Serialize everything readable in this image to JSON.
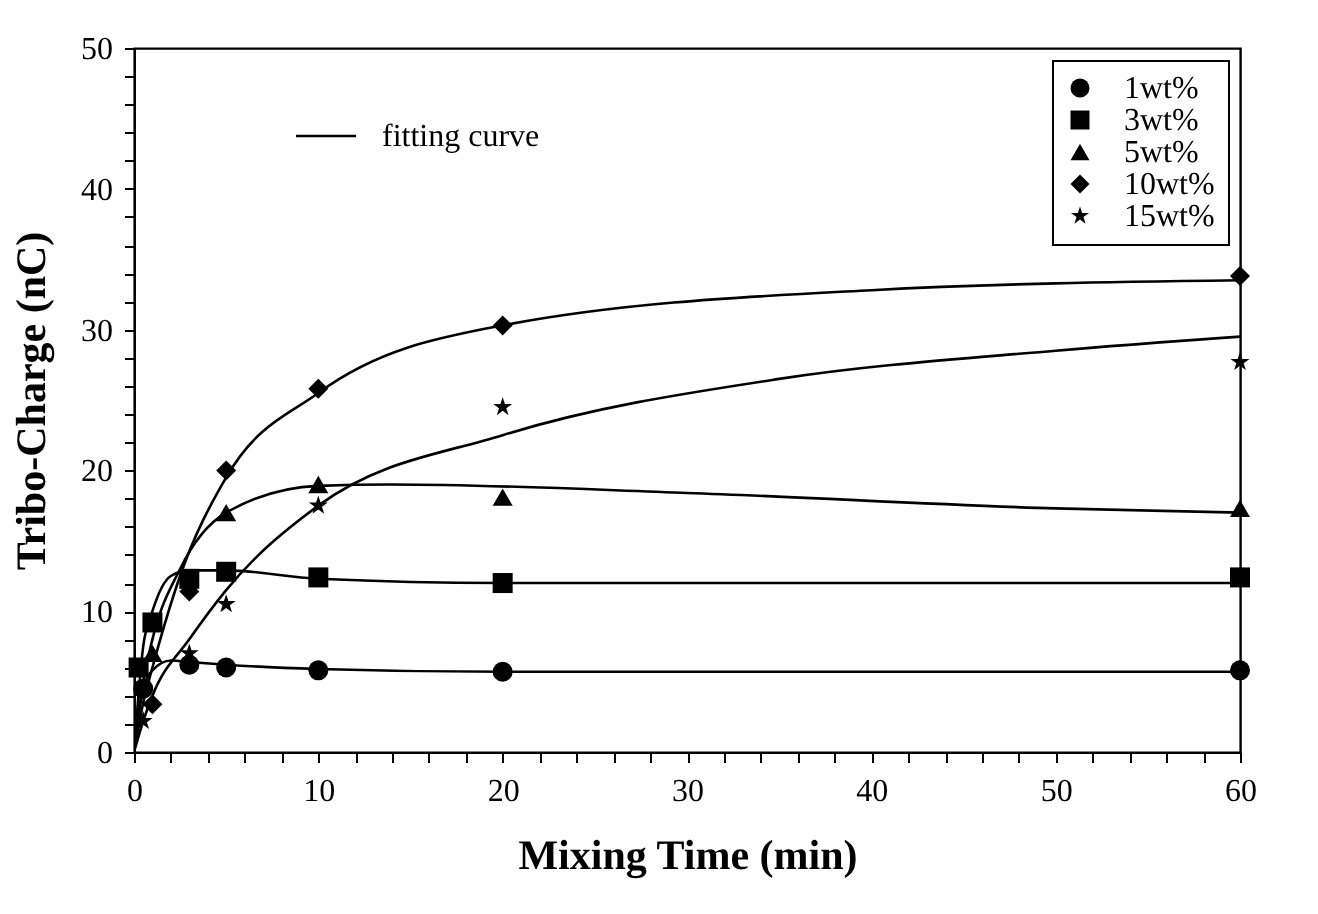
{
  "chart_data": {
    "type": "scatter",
    "xlabel": "Mixing Time (min)",
    "ylabel": "Tribo-Charge (nC)",
    "xlim": [
      0,
      60
    ],
    "ylim": [
      0,
      50
    ],
    "xticks": [
      0,
      {
        "value": 2,
        "label": null
      },
      {
        "value": 4,
        "label": null
      },
      {
        "value": 6,
        "label": null
      },
      {
        "value": 8,
        "label": null
      },
      10,
      {
        "value": 12,
        "label": null
      },
      {
        "value": 14,
        "label": null
      },
      {
        "value": 16,
        "label": null
      },
      {
        "value": 18,
        "label": null
      },
      20,
      {
        "value": 22,
        "label": null
      },
      {
        "value": 24,
        "label": null
      },
      {
        "value": 26,
        "label": null
      },
      {
        "value": 28,
        "label": null
      },
      30,
      {
        "value": 32,
        "label": null
      },
      {
        "value": 34,
        "label": null
      },
      {
        "value": 36,
        "label": null
      },
      {
        "value": 38,
        "label": null
      },
      40,
      {
        "value": 42,
        "label": null
      },
      {
        "value": 44,
        "label": null
      },
      {
        "value": 46,
        "label": null
      },
      {
        "value": 48,
        "label": null
      },
      50,
      {
        "value": 52,
        "label": null
      },
      {
        "value": 54,
        "label": null
      },
      {
        "value": 56,
        "label": null
      },
      {
        "value": 58,
        "label": null
      },
      60
    ],
    "yticks": [
      0,
      {
        "value": 2,
        "label": null
      },
      {
        "value": 4,
        "label": null
      },
      {
        "value": 6,
        "label": null
      },
      {
        "value": 8,
        "label": null
      },
      10,
      {
        "value": 12,
        "label": null
      },
      {
        "value": 14,
        "label": null
      },
      {
        "value": 16,
        "label": null
      },
      {
        "value": 18,
        "label": null
      },
      20,
      {
        "value": 22,
        "label": null
      },
      {
        "value": 24,
        "label": null
      },
      {
        "value": 26,
        "label": null
      },
      {
        "value": 28,
        "label": null
      },
      30,
      {
        "value": 32,
        "label": null
      },
      {
        "value": 34,
        "label": null
      },
      {
        "value": 36,
        "label": null
      },
      {
        "value": 38,
        "label": null
      },
      40,
      {
        "value": 42,
        "label": null
      },
      {
        "value": 44,
        "label": null
      },
      {
        "value": 46,
        "label": null
      },
      {
        "value": 48,
        "label": null
      },
      50
    ],
    "legend": "top right",
    "series": [
      {
        "name": "1wt%",
        "marker": "circle",
        "color": "#000000",
        "x": [
          0.5,
          3,
          5,
          10,
          20,
          60
        ],
        "values": [
          4.5,
          6.2,
          6.0,
          5.8,
          5.7,
          5.8
        ]
      },
      {
        "name": "3wt%",
        "marker": "square",
        "color": "#000000",
        "x": [
          0.25,
          1,
          3,
          5,
          10,
          20,
          60
        ],
        "values": [
          6.0,
          9.2,
          12.3,
          12.8,
          12.4,
          12.0,
          12.4
        ]
      },
      {
        "name": "5wt%",
        "marker": "triangle",
        "color": "#000000",
        "x": [
          1,
          5,
          10,
          20,
          60
        ],
        "values": [
          7.0,
          17.0,
          19.0,
          18.1,
          17.3
        ]
      },
      {
        "name": "10wt%",
        "marker": "diamond",
        "color": "#000000",
        "x": [
          1,
          3,
          5,
          10,
          20,
          60
        ],
        "values": [
          3.4,
          11.4,
          20.0,
          25.8,
          30.3,
          33.8
        ]
      },
      {
        "name": "15wt%",
        "marker": "star",
        "color": "#000000",
        "x": [
          0.5,
          3,
          5,
          10,
          20,
          60
        ],
        "values": [
          2.2,
          7.0,
          10.5,
          17.5,
          24.5,
          27.7
        ]
      },
      {
        "name": "fitting curve",
        "type": "line",
        "color": "#000000",
        "x": [
          0,
          0.5,
          1,
          2,
          3,
          5,
          10,
          20,
          40,
          60
        ],
        "values": [
          0,
          4.5,
          5.8,
          6.5,
          6.4,
          6.2,
          5.9,
          5.7,
          5.7,
          5.7
        ]
      },
      {
        "type": "line",
        "color": "#000000",
        "x": [
          0,
          0.5,
          1,
          2,
          3,
          5,
          10,
          20,
          40,
          60
        ],
        "values": [
          0,
          7.5,
          10.0,
          12.5,
          12.9,
          12.9,
          12.3,
          12.0,
          12.0,
          12.0
        ]
      },
      {
        "type": "line",
        "color": "#000000",
        "x": [
          0,
          0.5,
          1,
          2.5,
          5,
          10,
          14,
          30,
          50,
          60
        ],
        "values": [
          0,
          5.0,
          8.0,
          13.0,
          17.0,
          18.9,
          19.0,
          18.4,
          17.3,
          17.0
        ]
      },
      {
        "type": "line",
        "color": "#000000",
        "x": [
          0,
          0.5,
          1,
          2.5,
          5,
          10,
          20,
          40,
          60
        ],
        "values": [
          0,
          3.5,
          6.0,
          12.5,
          19.5,
          25.5,
          30.3,
          32.8,
          33.5
        ]
      },
      {
        "type": "line",
        "color": "#000000",
        "x": [
          0,
          0.5,
          1,
          3,
          5,
          10,
          20,
          35,
          50,
          60
        ],
        "values": [
          0,
          2.2,
          4.0,
          8.0,
          11.5,
          17.5,
          22.5,
          26.5,
          28.5,
          29.5
        ]
      }
    ]
  }
}
